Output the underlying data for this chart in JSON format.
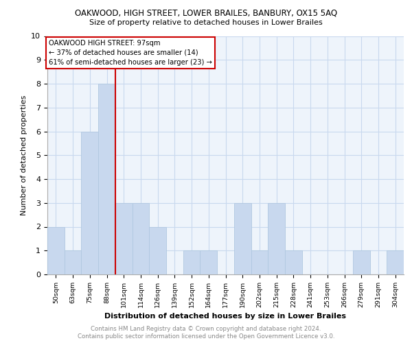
{
  "title1": "OAKWOOD, HIGH STREET, LOWER BRAILES, BANBURY, OX15 5AQ",
  "title2": "Size of property relative to detached houses in Lower Brailes",
  "xlabel": "Distribution of detached houses by size in Lower Brailes",
  "ylabel": "Number of detached properties",
  "categories": [
    "50sqm",
    "63sqm",
    "75sqm",
    "88sqm",
    "101sqm",
    "114sqm",
    "126sqm",
    "139sqm",
    "152sqm",
    "164sqm",
    "177sqm",
    "190sqm",
    "202sqm",
    "215sqm",
    "228sqm",
    "241sqm",
    "253sqm",
    "266sqm",
    "279sqm",
    "291sqm",
    "304sqm"
  ],
  "values": [
    2,
    1,
    6,
    8,
    3,
    3,
    2,
    0,
    1,
    1,
    0,
    3,
    1,
    3,
    1,
    0,
    0,
    0,
    1,
    0,
    1
  ],
  "bar_color": "#c8d8ee",
  "bar_edgecolor": "#b0c8e0",
  "ref_line_index": 4,
  "ref_line_color": "#cc0000",
  "annotation_title": "OAKWOOD HIGH STREET: 97sqm",
  "annotation_line1": "← 37% of detached houses are smaller (14)",
  "annotation_line2": "61% of semi-detached houses are larger (23) →",
  "annotation_box_edgecolor": "#cc0000",
  "ylim": [
    0,
    10
  ],
  "yticks": [
    0,
    1,
    2,
    3,
    4,
    5,
    6,
    7,
    8,
    9,
    10
  ],
  "footnote1": "Contains HM Land Registry data © Crown copyright and database right 2024.",
  "footnote2": "Contains public sector information licensed under the Open Government Licence v3.0.",
  "bg_color": "#ffffff",
  "grid_color": "#c8d8ee",
  "plot_bg_color": "#eef4fb"
}
